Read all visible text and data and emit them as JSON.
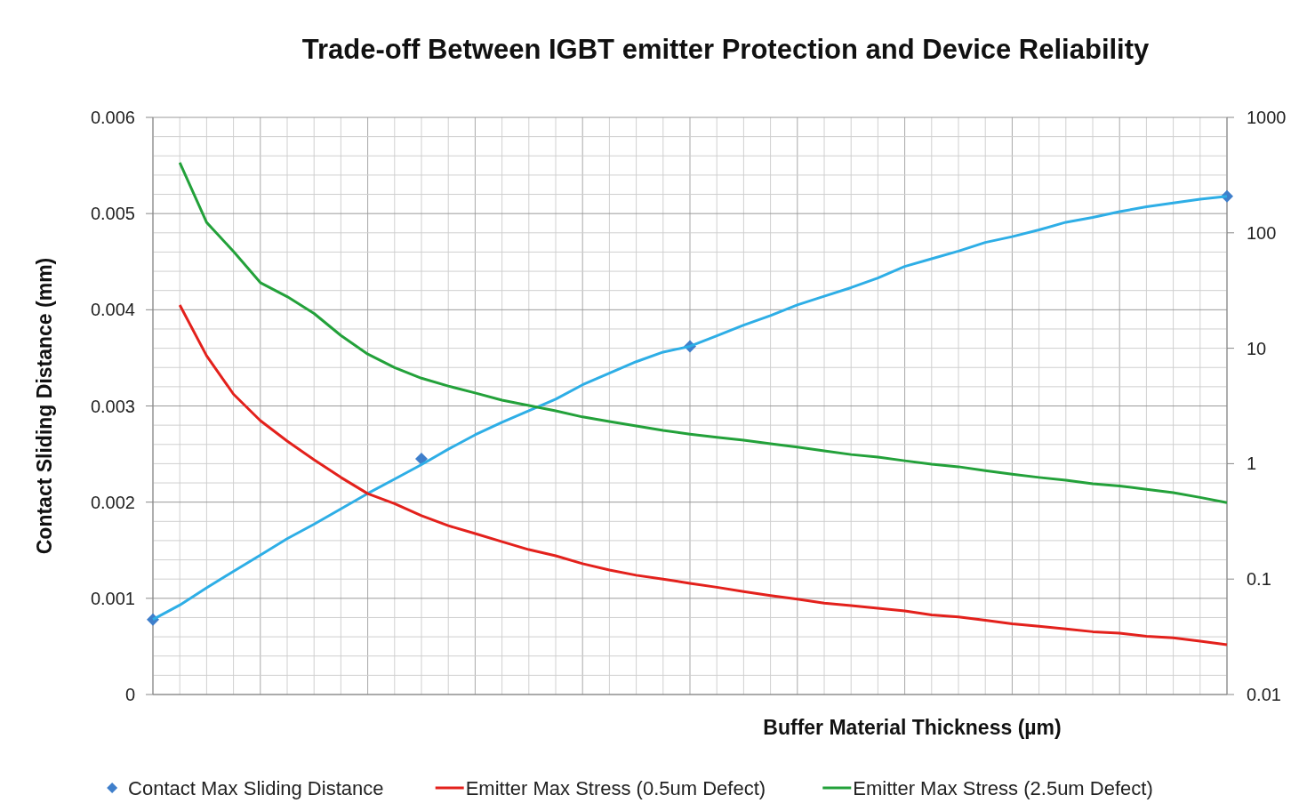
{
  "chart_data": {
    "type": "line",
    "title": "Trade-off Between IGBT emitter Protection and Device Reliability",
    "xlabel": "Buffer Material Thickness (µm)",
    "ylabel": "Contact Sliding Distance (mm)",
    "categories": [
      null,
      null,
      null,
      null,
      null,
      null,
      null,
      null,
      null,
      null,
      null,
      null,
      null,
      null,
      null,
      null,
      null,
      null,
      null,
      null,
      null,
      null,
      null,
      null,
      null,
      null,
      null,
      null,
      null,
      null,
      null,
      null,
      null,
      null,
      null,
      null,
      null,
      null,
      null,
      null,
      null
    ],
    "ylim": [
      0,
      0.006
    ],
    "yticks": [
      0,
      {
        "value": 0.0002,
        "label": null
      },
      {
        "value": 0.0004,
        "label": null
      },
      {
        "value": 0.0006,
        "label": null
      },
      {
        "value": 0.0008,
        "label": null
      },
      0.001,
      {
        "value": 0.0012,
        "label": null
      },
      {
        "value": 0.0014,
        "label": null
      },
      {
        "value": 0.0016,
        "label": null
      },
      {
        "value": 0.0018,
        "label": null
      },
      0.002,
      {
        "value": 0.0022,
        "label": null
      },
      {
        "value": 0.0024,
        "label": null
      },
      {
        "value": 0.0026,
        "label": null
      },
      {
        "value": 0.0028,
        "label": null
      },
      0.003,
      {
        "value": 0.0032,
        "label": null
      },
      {
        "value": 0.0034,
        "label": null
      },
      {
        "value": 0.0036,
        "label": null
      },
      {
        "value": 0.0038,
        "label": null
      },
      0.004,
      {
        "value": 0.0042,
        "label": null
      },
      {
        "value": 0.0044,
        "label": null
      },
      {
        "value": 0.0046,
        "label": null
      },
      {
        "value": 0.0048,
        "label": null
      },
      0.005,
      {
        "value": 0.0052,
        "label": null
      },
      {
        "value": 0.0054,
        "label": null
      },
      {
        "value": 0.0056,
        "label": null
      },
      {
        "value": 0.0058,
        "label": null
      },
      0.006
    ],
    "y2lim": [
      0.01,
      1000
    ],
    "y2ticks": [
      0.01,
      0.1,
      1,
      10,
      100,
      1000
    ],
    "log": "y2",
    "grid": true,
    "legend": "bottom",
    "series": [
      {
        "name": "Contact Max Sliding Distance",
        "type": "scatter",
        "marker": "diamond",
        "color": "#3f7fcb",
        "values": [
          0.00078,
          null,
          null,
          null,
          null,
          null,
          null,
          null,
          null,
          null,
          0.00245,
          null,
          null,
          null,
          null,
          null,
          null,
          null,
          null,
          null,
          0.00362,
          null,
          null,
          null,
          null,
          null,
          null,
          null,
          null,
          null,
          null,
          null,
          null,
          null,
          null,
          null,
          null,
          null,
          null,
          null,
          0.00518
        ]
      },
      {
        "color": "#2eaee6",
        "values": [
          0.00078,
          0.00093,
          0.00111,
          0.00128,
          0.00145,
          0.00162,
          0.00177,
          0.00193,
          0.00209,
          0.00224,
          0.00239,
          0.00255,
          0.0027,
          0.00283,
          0.00295,
          0.00307,
          0.00322,
          0.00334,
          0.00346,
          0.00356,
          0.00362,
          0.00373,
          0.00384,
          0.00394,
          0.00405,
          0.00414,
          0.00423,
          0.00433,
          0.00445,
          0.00453,
          0.00461,
          0.0047,
          0.00476,
          0.00483,
          0.00491,
          0.00496,
          0.00502,
          0.00507,
          0.00511,
          0.00515,
          0.00518
        ]
      },
      {
        "name": "Emitter Max Stress (0.5um Defect)",
        "axis": "y2",
        "color": "#e3211c",
        "values": [
          null,
          23.7,
          8.6,
          4,
          2.36,
          1.57,
          1.08,
          0.76,
          0.55,
          0.45,
          0.354,
          0.29,
          0.248,
          0.211,
          0.18,
          0.159,
          0.136,
          0.12,
          0.108,
          0.1,
          0.092,
          0.085,
          0.078,
          0.072,
          0.067,
          0.062,
          0.059,
          0.056,
          0.053,
          0.049,
          0.047,
          0.044,
          0.041,
          0.039,
          0.037,
          0.035,
          0.034,
          0.032,
          0.031,
          0.029,
          0.027
        ]
      },
      {
        "name": "Emitter Max Stress (2.5um Defect)",
        "axis": "y2",
        "color": "#23a13a",
        "values": [
          null,
          405,
          123,
          69,
          37,
          28,
          20,
          12.9,
          8.9,
          6.8,
          5.5,
          4.7,
          4.1,
          3.55,
          3.19,
          2.87,
          2.54,
          2.32,
          2.12,
          1.94,
          1.8,
          1.69,
          1.6,
          1.49,
          1.39,
          1.29,
          1.2,
          1.14,
          1.06,
          0.99,
          0.94,
          0.87,
          0.81,
          0.76,
          0.72,
          0.67,
          0.64,
          0.6,
          0.56,
          0.51,
          0.46
        ]
      }
    ]
  }
}
